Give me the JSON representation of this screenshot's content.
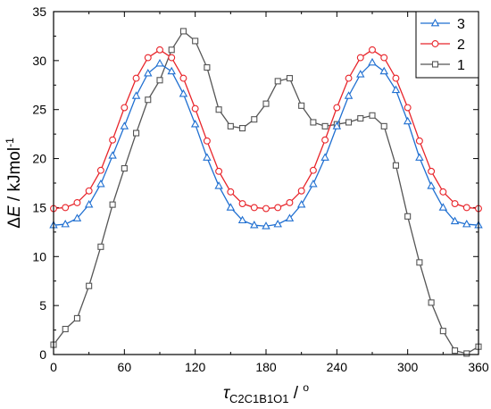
{
  "chart_data": {
    "type": "line",
    "title": "",
    "xlabel": {
      "prefix": "τ",
      "subscript": "C2C1B1O1",
      "suffix": " / ",
      "unit_sup": "o"
    },
    "ylabel": {
      "prefix": "Δ",
      "symbol": "E",
      "mid": " / kJmol",
      "sup": "-1"
    },
    "xlim": [
      0,
      360
    ],
    "ylim": [
      0,
      35
    ],
    "xticks": [
      0,
      60,
      120,
      180,
      240,
      300,
      360
    ],
    "yticks": [
      0,
      5,
      10,
      15,
      20,
      25,
      30,
      35
    ],
    "grid": false,
    "legend_position": "top-right",
    "series": [
      {
        "name": "3",
        "color": "#1f6fd1",
        "marker": "triangle",
        "x": [
          0,
          10,
          20,
          30,
          40,
          50,
          60,
          70,
          80,
          90,
          100,
          110,
          120,
          130,
          140,
          150,
          160,
          170,
          180,
          190,
          200,
          210,
          220,
          230,
          240,
          250,
          260,
          270,
          280,
          290,
          300,
          310,
          320,
          330,
          340,
          350,
          360
        ],
        "y": [
          13.2,
          13.3,
          13.9,
          15.3,
          17.4,
          20.3,
          23.3,
          26.4,
          28.7,
          29.7,
          28.9,
          26.6,
          23.5,
          20.1,
          17.2,
          15.0,
          13.7,
          13.2,
          13.1,
          13.3,
          13.9,
          15.3,
          17.4,
          20.1,
          23.3,
          26.4,
          28.6,
          29.8,
          28.9,
          27.0,
          23.8,
          20.1,
          17.2,
          15.0,
          13.6,
          13.3,
          13.2
        ]
      },
      {
        "name": "2",
        "color": "#e8242a",
        "marker": "circle",
        "x": [
          0,
          10,
          20,
          30,
          40,
          50,
          60,
          70,
          80,
          90,
          100,
          110,
          120,
          130,
          140,
          150,
          160,
          170,
          180,
          190,
          200,
          210,
          220,
          230,
          240,
          250,
          260,
          270,
          280,
          290,
          300,
          310,
          320,
          330,
          340,
          350,
          360
        ],
        "y": [
          14.9,
          15.0,
          15.5,
          16.7,
          18.8,
          21.9,
          25.2,
          28.2,
          30.3,
          31.1,
          30.3,
          28.2,
          25.1,
          21.8,
          18.7,
          16.6,
          15.4,
          15.0,
          14.9,
          15.0,
          15.5,
          16.7,
          18.8,
          21.9,
          25.2,
          28.2,
          30.3,
          31.1,
          30.3,
          28.2,
          25.2,
          21.8,
          18.7,
          16.6,
          15.4,
          15.0,
          14.9
        ]
      },
      {
        "name": "1",
        "color": "#555555",
        "marker": "square",
        "x": [
          0,
          10,
          20,
          30,
          40,
          50,
          60,
          70,
          80,
          90,
          100,
          110,
          120,
          130,
          140,
          150,
          160,
          170,
          180,
          190,
          200,
          210,
          220,
          230,
          240,
          250,
          260,
          270,
          280,
          290,
          300,
          310,
          320,
          330,
          340,
          350,
          360
        ],
        "y": [
          1.0,
          2.6,
          3.7,
          7.0,
          11.0,
          15.3,
          19.0,
          22.6,
          26.0,
          28.0,
          31.1,
          33.0,
          32.0,
          29.3,
          25.0,
          23.3,
          23.1,
          24.0,
          25.6,
          27.9,
          28.2,
          25.4,
          23.7,
          23.3,
          23.5,
          23.7,
          24.1,
          24.4,
          23.3,
          19.3,
          14.1,
          9.4,
          5.3,
          2.4,
          0.4,
          0.1,
          0.8
        ]
      }
    ]
  }
}
